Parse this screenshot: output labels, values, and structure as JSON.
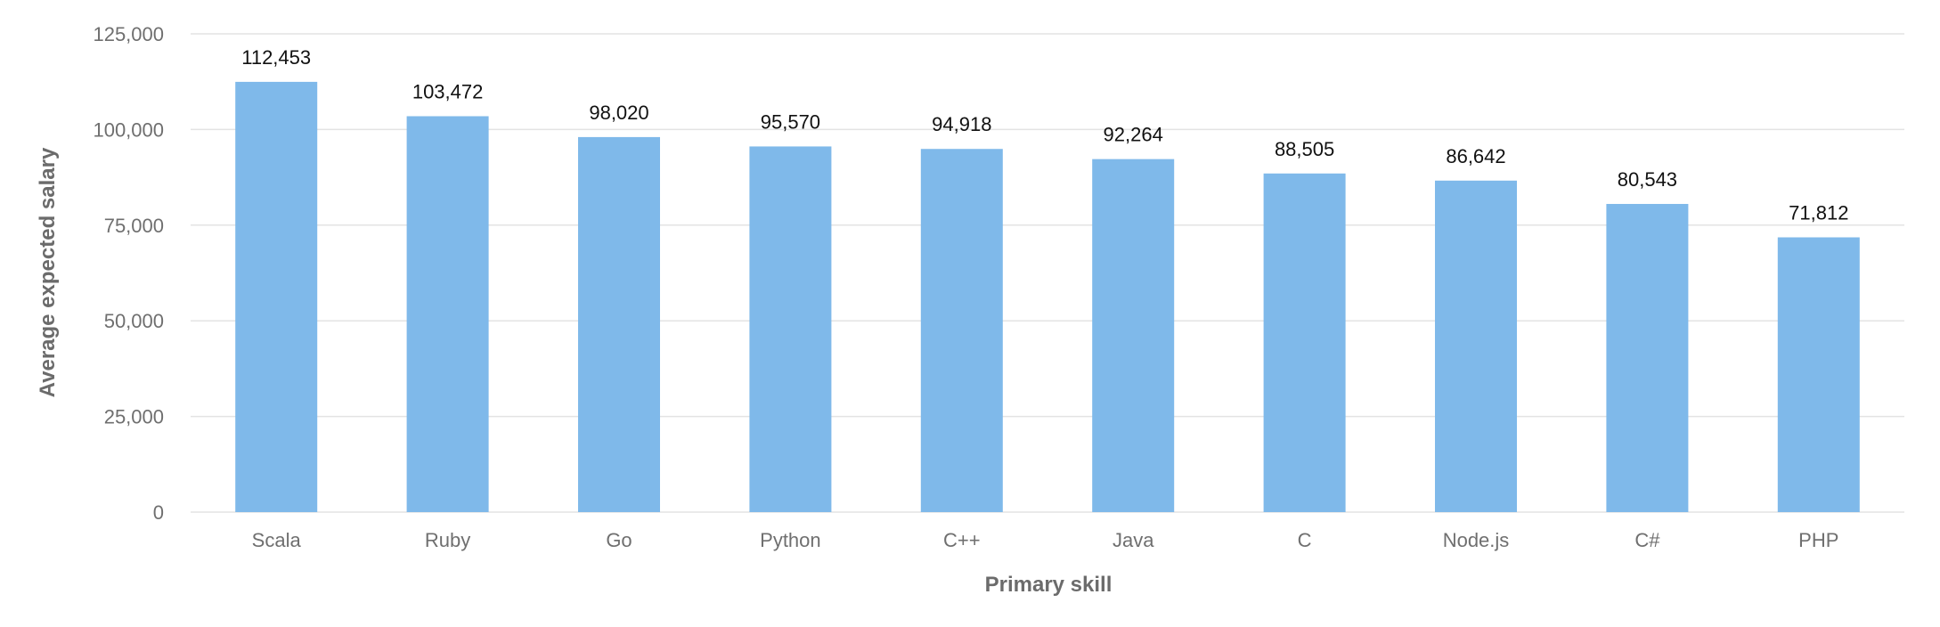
{
  "chart_data": {
    "type": "bar",
    "categories": [
      "Scala",
      "Ruby",
      "Go",
      "Python",
      "C++",
      "Java",
      "C",
      "Node.js",
      "C#",
      "PHP"
    ],
    "values": [
      112453,
      103472,
      98020,
      95570,
      94918,
      92264,
      88505,
      86642,
      80543,
      71812
    ],
    "data_labels": [
      "112,453",
      "103,472",
      "98,020",
      "95,570",
      "94,918",
      "92,264",
      "88,505",
      "86,642",
      "80,543",
      "71,812"
    ],
    "xlabel": "Primary skill",
    "ylabel": "Average expected salary",
    "ylim": [
      0,
      125000
    ],
    "yticks": [
      0,
      25000,
      50000,
      75000,
      100000,
      125000
    ],
    "ytick_labels": [
      "0",
      "25,000",
      "50,000",
      "75,000",
      "100,000",
      "125,000"
    ],
    "grid": true,
    "legend": "none",
    "bar_color": "#7fb9ea"
  }
}
